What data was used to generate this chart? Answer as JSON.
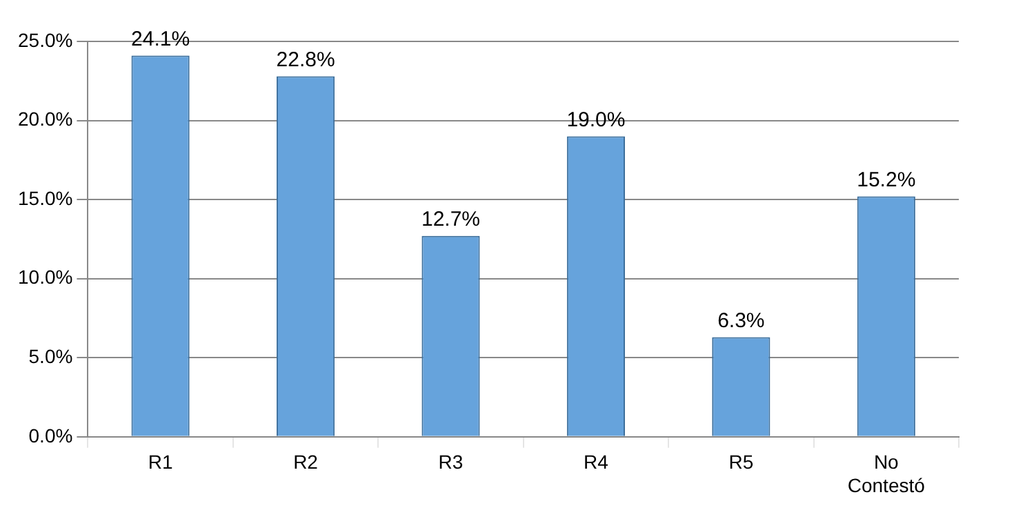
{
  "chart_data": {
    "type": "bar",
    "categories": [
      "R1",
      "R2",
      "R3",
      "R4",
      "R5",
      "No Contestó"
    ],
    "values": [
      24.1,
      22.8,
      12.7,
      19.0,
      6.3,
      15.2
    ],
    "value_labels": [
      "24.1%",
      "22.8%",
      "12.7%",
      "19.0%",
      "6.3%",
      "15.2%"
    ],
    "color": "#66a3dc",
    "ylim": [
      0,
      25
    ],
    "yticks": [
      {
        "value": 0,
        "label": "0.0%"
      },
      {
        "value": 5,
        "label": "5.0%"
      },
      {
        "value": 10,
        "label": "10.0%"
      },
      {
        "value": 15,
        "label": "15.0%"
      },
      {
        "value": 20,
        "label": "20.0%"
      },
      {
        "value": 25,
        "label": "25.0%"
      }
    ],
    "grid": true,
    "legend": false
  }
}
